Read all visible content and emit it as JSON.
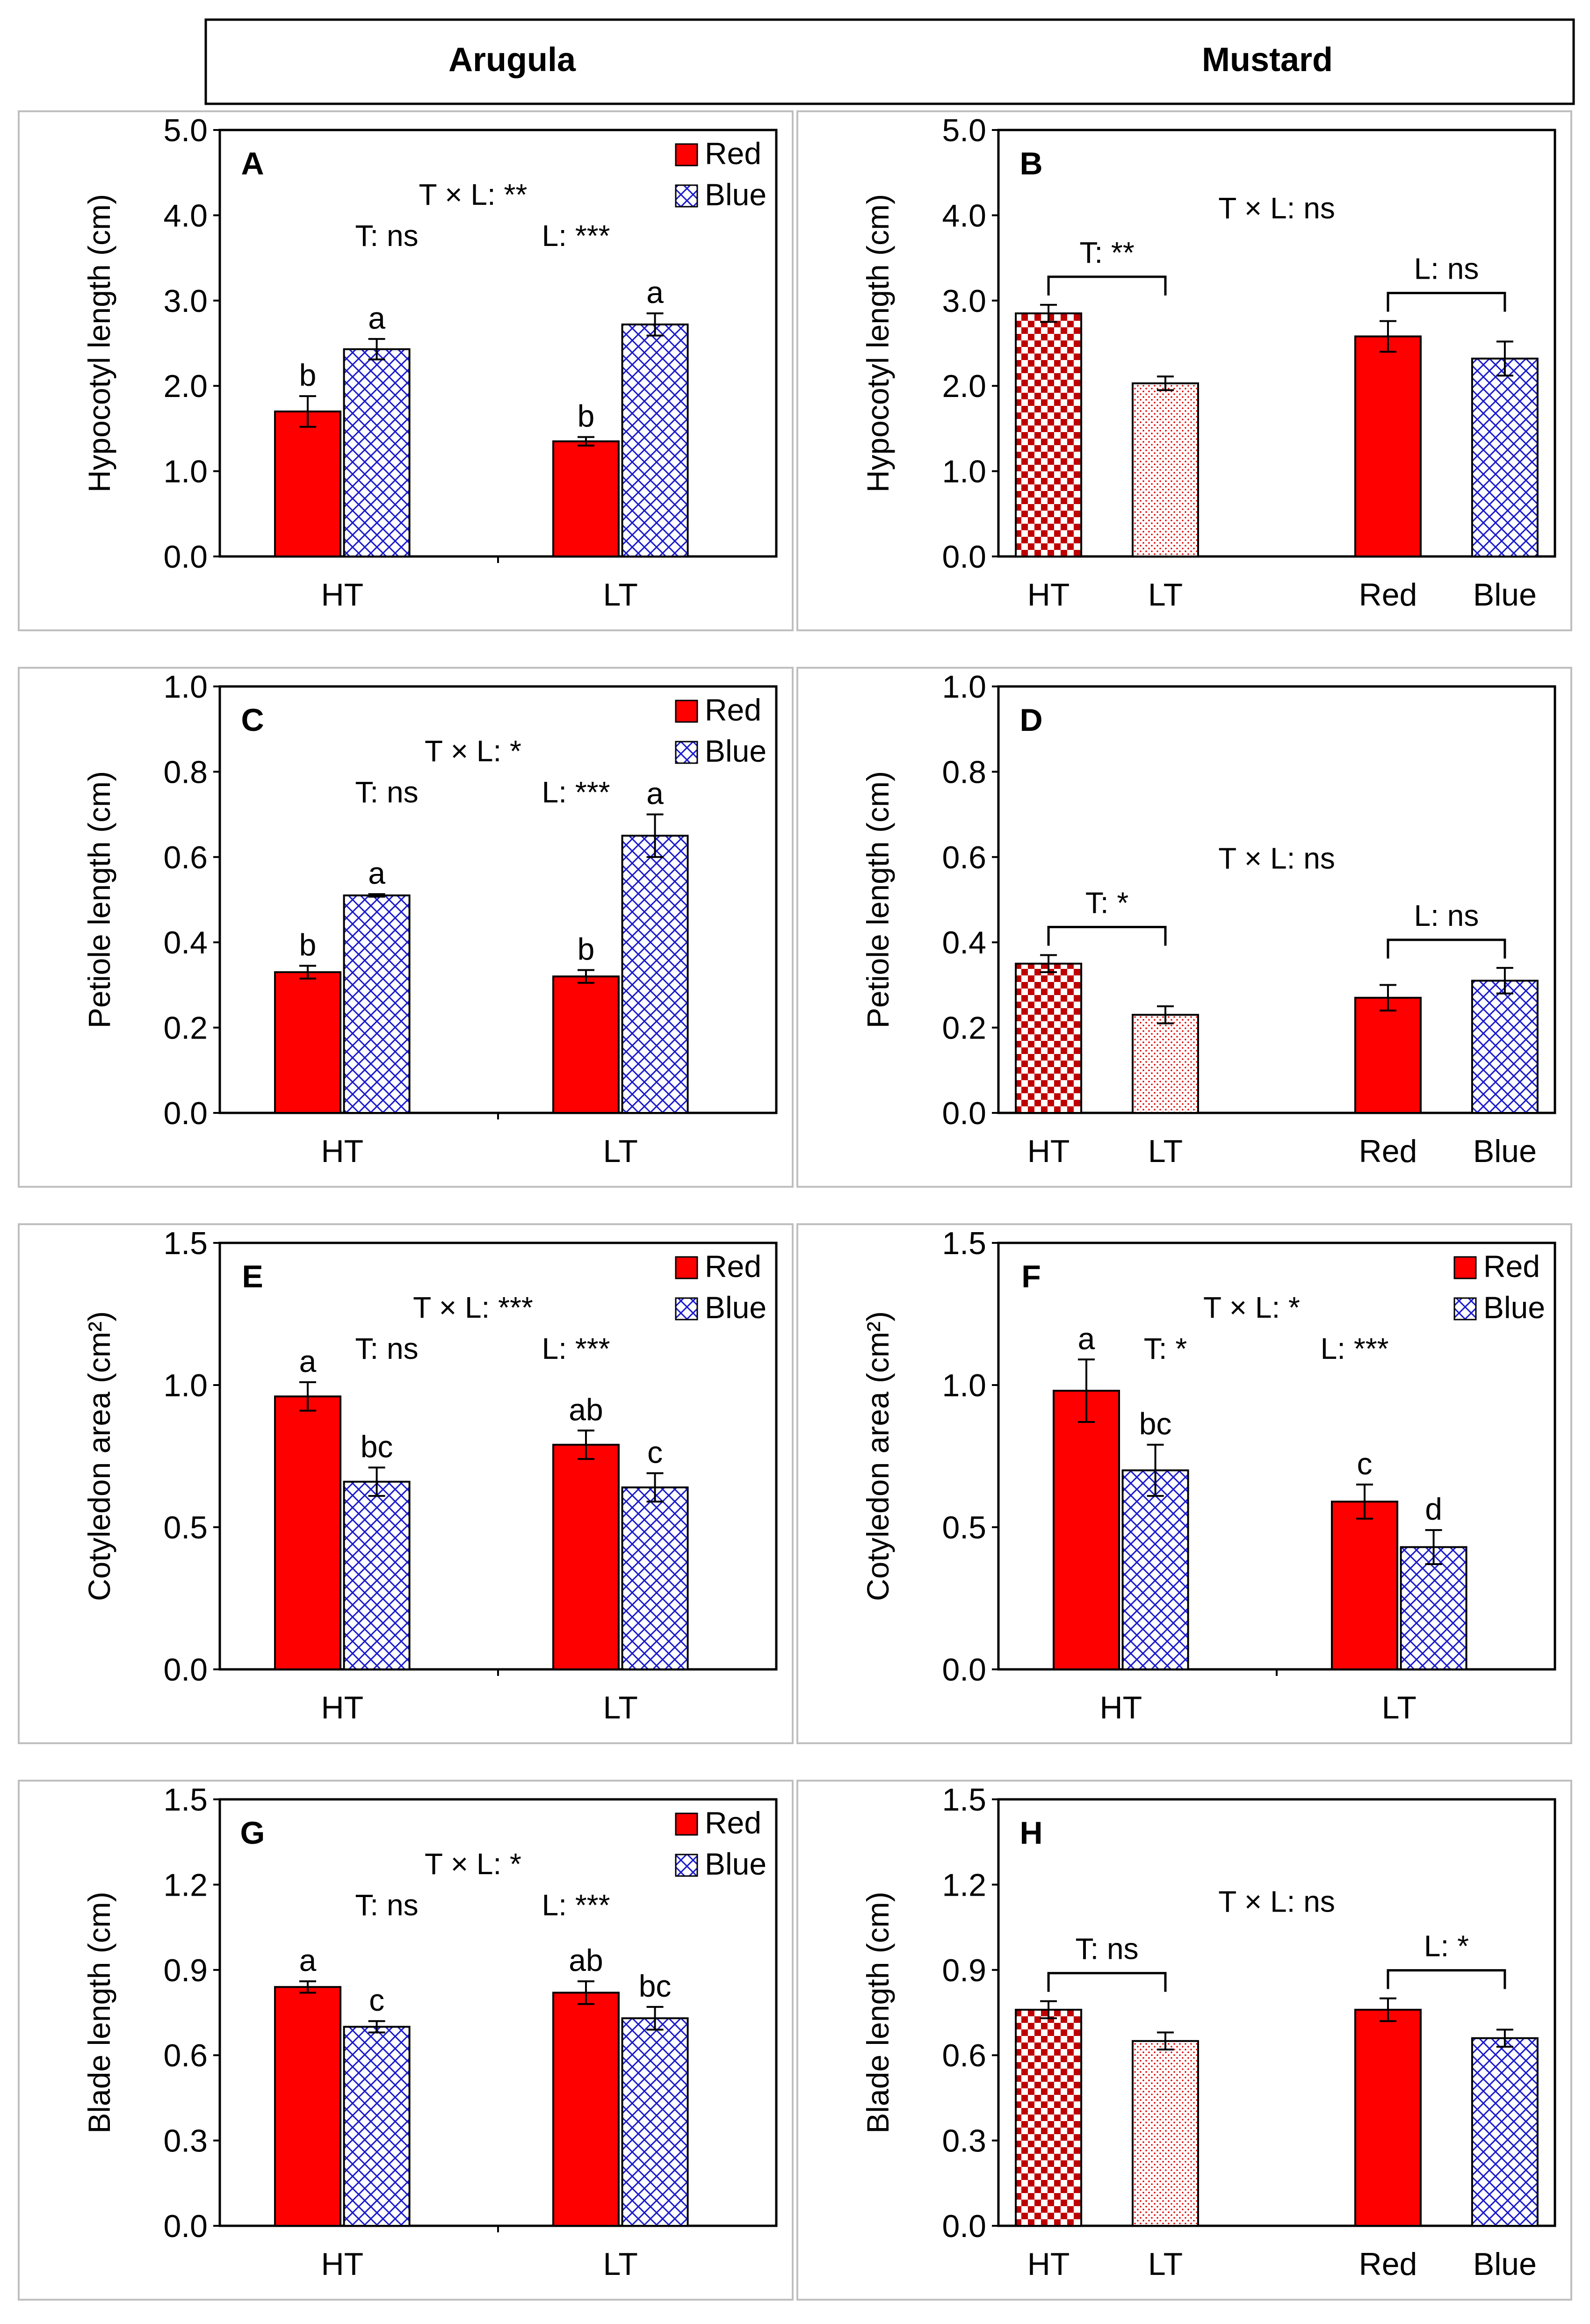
{
  "colors": {
    "red": "#ff0000",
    "blue": "#1a1acc",
    "dark_red": "#c00000",
    "frame": "#bfbfbf"
  },
  "header": {
    "left": "Arugula",
    "right": "Mustard"
  },
  "legend": {
    "red": "Red",
    "blue": "Blue"
  },
  "chart_data": [
    {
      "id": "A",
      "type": "bar",
      "panel_label": "A",
      "ylabel": "Hypocotyl length (cm)",
      "ylim": [
        0,
        5
      ],
      "yticks": [
        "0.0",
        "1.0",
        "2.0",
        "3.0",
        "4.0",
        "5.0"
      ],
      "categories": [
        "HT",
        "LT"
      ],
      "series": [
        {
          "name": "Red",
          "values": [
            1.7,
            1.35
          ],
          "errors": [
            0.18,
            0.05
          ]
        },
        {
          "name": "Blue",
          "values": [
            2.43,
            2.72
          ],
          "errors": [
            0.12,
            0.13
          ]
        }
      ],
      "letters": [
        [
          "b",
          "a"
        ],
        [
          "b",
          "a"
        ]
      ],
      "stats": {
        "interaction": "T × L: **",
        "t": "T: ns",
        "l": "L: ***"
      }
    },
    {
      "id": "B",
      "type": "bar",
      "panel_label": "B",
      "ylabel": "Hypocotyl length (cm)",
      "ylim": [
        0,
        5
      ],
      "yticks": [
        "0.0",
        "1.0",
        "2.0",
        "3.0",
        "4.0",
        "5.0"
      ],
      "categories": [
        "HT",
        "LT",
        "Red",
        "Blue"
      ],
      "values": [
        2.85,
        2.03,
        2.58,
        2.32
      ],
      "errors": [
        0.1,
        0.08,
        0.18,
        0.2
      ],
      "stats": {
        "interaction": "T × L: ns",
        "t": "T: **",
        "l": "L: ns"
      }
    },
    {
      "id": "C",
      "type": "bar",
      "panel_label": "C",
      "ylabel": "Petiole length (cm)",
      "ylim": [
        0,
        1
      ],
      "yticks": [
        "0.0",
        "0.2",
        "0.4",
        "0.6",
        "0.8",
        "1.0"
      ],
      "categories": [
        "HT",
        "LT"
      ],
      "series": [
        {
          "name": "Red",
          "values": [
            0.33,
            0.32
          ],
          "errors": [
            0.015,
            0.015
          ]
        },
        {
          "name": "Blue",
          "values": [
            0.51,
            0.65
          ],
          "errors": [
            0.003,
            0.05
          ]
        }
      ],
      "letters": [
        [
          "b",
          "a"
        ],
        [
          "b",
          "a"
        ]
      ],
      "stats": {
        "interaction": "T × L: *",
        "t": "T: ns",
        "l": "L: ***"
      }
    },
    {
      "id": "D",
      "type": "bar",
      "panel_label": "D",
      "ylabel": "Petiole length (cm)",
      "ylim": [
        0,
        1
      ],
      "yticks": [
        "0.0",
        "0.2",
        "0.4",
        "0.6",
        "0.8",
        "1.0"
      ],
      "categories": [
        "HT",
        "LT",
        "Red",
        "Blue"
      ],
      "values": [
        0.35,
        0.23,
        0.27,
        0.31
      ],
      "errors": [
        0.02,
        0.02,
        0.03,
        0.03
      ],
      "stats": {
        "interaction": "T × L: ns",
        "t": "T: *",
        "l": "L: ns"
      }
    },
    {
      "id": "E",
      "type": "bar",
      "panel_label": "E",
      "ylabel": "Cotyledon area (cm²)",
      "ylim": [
        0,
        1.5
      ],
      "yticks": [
        "0.0",
        "0.5",
        "1.0",
        "1.5"
      ],
      "categories": [
        "HT",
        "LT"
      ],
      "series": [
        {
          "name": "Red",
          "values": [
            0.96,
            0.79
          ],
          "errors": [
            0.05,
            0.05
          ]
        },
        {
          "name": "Blue",
          "values": [
            0.66,
            0.64
          ],
          "errors": [
            0.05,
            0.05
          ]
        }
      ],
      "letters": [
        [
          "a",
          "bc"
        ],
        [
          "ab",
          "c"
        ]
      ],
      "stats": {
        "interaction": "T × L: ***",
        "t": "T: ns",
        "l": "L: ***"
      }
    },
    {
      "id": "F",
      "type": "bar",
      "panel_label": "F",
      "ylabel": "Cotyledon area (cm²)",
      "ylim": [
        0,
        1.5
      ],
      "yticks": [
        "0.0",
        "0.5",
        "1.0",
        "1.5"
      ],
      "categories": [
        "HT",
        "LT"
      ],
      "series": [
        {
          "name": "Red",
          "values": [
            0.98,
            0.59
          ],
          "errors": [
            0.11,
            0.06
          ]
        },
        {
          "name": "Blue",
          "values": [
            0.7,
            0.43
          ],
          "errors": [
            0.09,
            0.06
          ]
        }
      ],
      "letters": [
        [
          "a",
          "bc"
        ],
        [
          "c",
          "d"
        ]
      ],
      "stats": {
        "interaction": "T × L: *",
        "t": "T: *",
        "l": "L: ***"
      }
    },
    {
      "id": "G",
      "type": "bar",
      "panel_label": "G",
      "ylabel": "Blade length (cm)",
      "ylim": [
        0,
        1.5
      ],
      "yticks": [
        "0.0",
        "0.3",
        "0.6",
        "0.9",
        "1.2",
        "1.5"
      ],
      "categories": [
        "HT",
        "LT"
      ],
      "series": [
        {
          "name": "Red",
          "values": [
            0.84,
            0.82
          ],
          "errors": [
            0.02,
            0.04
          ]
        },
        {
          "name": "Blue",
          "values": [
            0.7,
            0.73
          ],
          "errors": [
            0.02,
            0.04
          ]
        }
      ],
      "letters": [
        [
          "a",
          "c"
        ],
        [
          "ab",
          "bc"
        ]
      ],
      "stats": {
        "interaction": "T × L: *",
        "t": "T: ns",
        "l": "L: ***"
      }
    },
    {
      "id": "H",
      "type": "bar",
      "panel_label": "H",
      "ylabel": "Blade length (cm)",
      "ylim": [
        0,
        1.5
      ],
      "yticks": [
        "0.0",
        "0.3",
        "0.6",
        "0.9",
        "1.2",
        "1.5"
      ],
      "categories": [
        "HT",
        "LT",
        "Red",
        "Blue"
      ],
      "values": [
        0.76,
        0.65,
        0.76,
        0.66
      ],
      "errors": [
        0.03,
        0.03,
        0.04,
        0.03
      ],
      "stats": {
        "interaction": "T × L: ns",
        "t": "T: ns",
        "l": "L: *"
      }
    }
  ]
}
